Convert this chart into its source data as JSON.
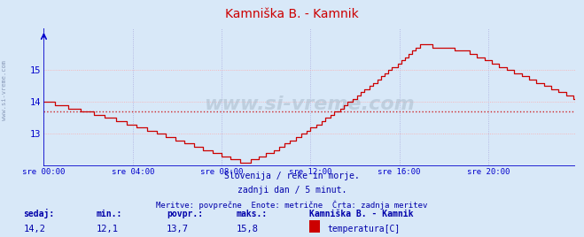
{
  "title": "Kamniška B. - Kamnik",
  "bg_color": "#d8e8f8",
  "plot_bg_color": "#d8e8f8",
  "line_color": "#cc0000",
  "grid_color": "#ffaaaa",
  "grid_color2": "#ddddff",
  "axis_color": "#0000cc",
  "text_color": "#0000aa",
  "avg_value": 13.7,
  "y_min": 12.0,
  "y_max": 16.3,
  "y_ticks": [
    13,
    14,
    15
  ],
  "x_ticks_labels": [
    "sre 00:00",
    "sre 04:00",
    "sre 08:00",
    "sre 12:00",
    "sre 16:00",
    "sre 20:00"
  ],
  "x_ticks_pos": [
    0,
    48,
    96,
    144,
    192,
    240
  ],
  "total_points": 288,
  "subtitle1": "Slovenija / reke in morje.",
  "subtitle2": "zadnji dan / 5 minut.",
  "subtitle3": "Meritve: povprečne  Enote: metrične  Črta: zadnja meritev",
  "label_sedaj": "sedaj:",
  "label_min": "min.:",
  "label_povpr": "povpr.:",
  "label_maks": "maks.:",
  "val_sedaj": "14,2",
  "val_min": "12,1",
  "val_povpr": "13,7",
  "val_maks": "15,8",
  "legend_title": "Kamniška B. - Kamnik",
  "legend_label": "temperatura[C]",
  "legend_color": "#cc0000",
  "watermark": "www.si-vreme.com",
  "watermark_color": "#aabbcc",
  "left_text": "www.si-vreme.com"
}
